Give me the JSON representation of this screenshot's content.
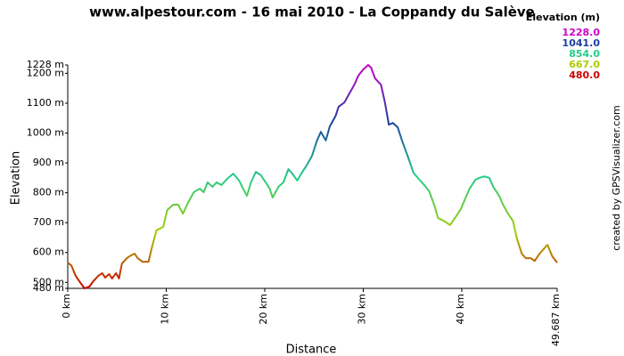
{
  "chart_data": {
    "type": "line",
    "title": "www.alpestour.com - 16 mai 2010 - La Coppandy du Salève",
    "xlabel": "Distance",
    "ylabel": "Elevation",
    "credit": "created by GPSVisualizer.com",
    "legend": {
      "title": "Elevation (m)",
      "entries": [
        {
          "value": 1228,
          "label": "1228.0",
          "color": "#cc00cc"
        },
        {
          "value": 1041,
          "label": "1041.0",
          "color": "#1a3fa0"
        },
        {
          "value": 854,
          "label": "854.0",
          "color": "#22cc88"
        },
        {
          "value": 667,
          "label": "667.0",
          "color": "#aacc00"
        },
        {
          "value": 480,
          "label": "480.0",
          "color": "#cc0000"
        }
      ]
    },
    "x": [
      0,
      0.36,
      0.8,
      1.3,
      1.7,
      2.2,
      2.6,
      3.1,
      3.5,
      3.8,
      4.2,
      4.5,
      4.9,
      5.2,
      5.5,
      6.0,
      6.4,
      6.8,
      7.1,
      7.6,
      8.2,
      8.5,
      9.0,
      9.7,
      10.1,
      10.7,
      11.2,
      11.7,
      12.2,
      12.8,
      13.4,
      13.8,
      14.2,
      14.7,
      15.1,
      15.6,
      16.3,
      16.8,
      17.4,
      17.8,
      18.2,
      18.6,
      19.1,
      19.6,
      20.1,
      20.5,
      20.8,
      21.4,
      21.9,
      22.4,
      22.8,
      23.3,
      23.7,
      24.3,
      24.8,
      25.3,
      25.7,
      26.2,
      26.6,
      27.2,
      27.5,
      28.1,
      28.6,
      29.1,
      29.5,
      30.0,
      30.5,
      30.8,
      31.2,
      31.8,
      32.2,
      32.6,
      33.0,
      33.5,
      34.0,
      34.6,
      35.1,
      35.7,
      36.2,
      36.7,
      37.2,
      37.6,
      38.2,
      38.8,
      39.3,
      39.9,
      40.4,
      40.8,
      41.4,
      41.8,
      42.3,
      42.8,
      43.2,
      43.8,
      44.2,
      44.7,
      45.2,
      45.6,
      46.1,
      46.5,
      47.0,
      47.4,
      47.9,
      48.3,
      48.7,
      49.2,
      49.687
    ],
    "values": [
      566,
      557,
      522,
      498,
      480,
      486,
      504,
      522,
      531,
      516,
      528,
      513,
      531,
      513,
      563,
      581,
      590,
      596,
      581,
      569,
      569,
      611,
      674,
      686,
      742,
      760,
      760,
      730,
      766,
      802,
      814,
      802,
      835,
      820,
      835,
      826,
      850,
      864,
      841,
      814,
      790,
      835,
      870,
      859,
      835,
      814,
      784,
      820,
      835,
      879,
      864,
      841,
      864,
      894,
      924,
      975,
      1004,
      975,
      1022,
      1058,
      1088,
      1103,
      1133,
      1162,
      1192,
      1213,
      1228,
      1219,
      1183,
      1162,
      1103,
      1028,
      1034,
      1019,
      969,
      915,
      867,
      844,
      826,
      805,
      760,
      715,
      706,
      692,
      715,
      745,
      784,
      814,
      844,
      850,
      855,
      850,
      820,
      790,
      760,
      730,
      706,
      647,
      596,
      581,
      581,
      572,
      596,
      611,
      626,
      587,
      566
    ],
    "xlim": [
      0,
      49.687
    ],
    "ylim": [
      480,
      1228
    ],
    "xticks": [
      {
        "value": 0,
        "label": "0 km"
      },
      {
        "value": 10,
        "label": "10 km"
      },
      {
        "value": 20,
        "label": "20 km"
      },
      {
        "value": 30,
        "label": "30 km"
      },
      {
        "value": 40,
        "label": "40 km"
      },
      {
        "value": 49.687,
        "label": "49.687 km"
      }
    ],
    "yticks": [
      {
        "value": 480,
        "label": "480 m"
      },
      {
        "value": 500,
        "label": "500 m"
      },
      {
        "value": 600,
        "label": "600 m"
      },
      {
        "value": 700,
        "label": "700 m"
      },
      {
        "value": 800,
        "label": "800 m"
      },
      {
        "value": 900,
        "label": "900 m"
      },
      {
        "value": 1000,
        "label": "1000 m"
      },
      {
        "value": 1100,
        "label": "1100 m"
      },
      {
        "value": 1200,
        "label": "1200 m"
      },
      {
        "value": 1228,
        "label": "1228 m"
      }
    ],
    "grid": false
  }
}
